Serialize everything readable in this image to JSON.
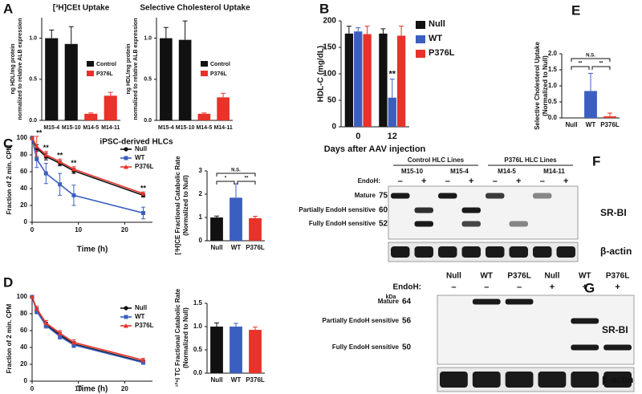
{
  "chart_data": [
    {
      "type": "bar",
      "panel": "A",
      "title": "[³H]CEt Uptake",
      "ylabel": [
        "ng HDL/mg protein",
        "normalized to relative ALB expression"
      ],
      "xlabel": "iPSC-derived HLCs",
      "categories": [
        "M15-4",
        "M15-10",
        "M14-5",
        "M14-11"
      ],
      "series": [
        {
          "name": "Control",
          "color": "#111111",
          "values": [
            1.0,
            0.93,
            null,
            null
          ],
          "errors": [
            0.1,
            0.21,
            null,
            null
          ]
        },
        {
          "name": "P376L",
          "color": "#e8322a",
          "values": [
            null,
            null,
            0.08,
            0.3
          ],
          "errors": [
            null,
            null,
            0.01,
            0.04
          ]
        }
      ],
      "ylim": [
        0,
        1.25
      ],
      "yticks": [
        {
          "value": 0,
          "label": "0.0"
        },
        {
          "value": 0.5,
          "label": "0.5"
        },
        {
          "value": 1,
          "label": "1.0"
        }
      ],
      "legend": "right"
    },
    {
      "type": "bar",
      "title": "Selective Cholesterol Uptake",
      "ylabel": [
        "ng HDL/mg protein",
        "normalized to relative ALB expression"
      ],
      "categories": [
        "M15-4",
        "M15-10",
        "M14-5",
        "M14-11"
      ],
      "series": [
        {
          "name": "Control",
          "color": "#111111",
          "values": [
            1.0,
            0.98,
            null,
            null
          ],
          "errors": [
            0.13,
            0.23,
            null,
            null
          ]
        },
        {
          "name": "P376L",
          "color": "#e8322a",
          "values": [
            null,
            null,
            0.08,
            0.28
          ],
          "errors": [
            null,
            null,
            0.01,
            0.05
          ]
        }
      ],
      "ylim": [
        0,
        1.25
      ],
      "yticks": [
        {
          "value": 0,
          "label": "0.0"
        },
        {
          "value": 0.5,
          "label": "0.5"
        },
        {
          "value": 1,
          "label": "1.0"
        }
      ],
      "legend": "right"
    },
    {
      "type": "bar",
      "panel": "B",
      "ylabel": [
        "HDL-C (mg/dL)"
      ],
      "xlabel": "Days after AAV injection",
      "categories": [
        "0",
        "12"
      ],
      "series": [
        {
          "name": "Null",
          "color": "#111111",
          "values": [
            176,
            176
          ],
          "errors": [
            14,
            9
          ]
        },
        {
          "name": "WT",
          "color": "#3b5fc0",
          "values": [
            180,
            55
          ],
          "errors": [
            7,
            35
          ]
        },
        {
          "name": "P376L",
          "color": "#e8322a",
          "values": [
            175,
            172
          ],
          "errors": [
            15,
            18
          ]
        }
      ],
      "ylim": [
        0,
        200
      ],
      "yticks": [
        0,
        50,
        100,
        150,
        200
      ],
      "legend": "outside right",
      "annotations": [
        "**"
      ]
    },
    {
      "type": "bar",
      "panel": "E",
      "ylabel": [
        "Selective Cholesterol Uptake",
        "(Normalized to Null)"
      ],
      "categories": [
        "Null",
        "WT",
        "P376L"
      ],
      "values": [
        0,
        0.84,
        0.05
      ],
      "errors": [
        0,
        0.55,
        0.1
      ],
      "colors": [
        "#111111",
        "#3b5fc0",
        "#e8322a"
      ],
      "ylim": [
        0,
        2
      ],
      "yticks": [
        {
          "value": 0,
          "label": "0.0"
        },
        {
          "value": 0.5,
          "label": "0.5"
        },
        {
          "value": 1,
          "label": "1.0"
        },
        {
          "value": 1.5,
          "label": "1.5"
        },
        {
          "value": 2,
          "label": "2.0"
        }
      ],
      "annotations": [
        "N.S.",
        "**",
        "**"
      ]
    },
    {
      "type": "line",
      "panel": "C",
      "ylabel": [
        "Fraction of 2 min. CPM"
      ],
      "xlabel": "Time (h)",
      "x": [
        0,
        1,
        3,
        6,
        9,
        24
      ],
      "series": [
        {
          "name": "Null",
          "color": "#111111",
          "values": [
            100,
            88,
            78,
            70,
            61,
            32
          ],
          "errors": [
            2,
            4,
            4,
            3,
            3,
            2
          ]
        },
        {
          "name": "WT",
          "color": "#3b5fc0",
          "values": [
            100,
            75,
            58,
            45,
            32,
            11
          ],
          "errors": [
            2,
            10,
            12,
            13,
            12,
            7
          ]
        },
        {
          "name": "P376L",
          "color": "#e8322a",
          "values": [
            100,
            90,
            80,
            72,
            63,
            34
          ],
          "errors": [
            2,
            12,
            4,
            3,
            3,
            2
          ]
        }
      ],
      "xlim": [
        0,
        26
      ],
      "ylim": [
        0,
        100
      ],
      "xticks": [
        0,
        10,
        20
      ],
      "yticks": [
        0,
        20,
        40,
        60,
        80,
        100
      ],
      "legend": "upper right",
      "annotations": [
        "**",
        "**",
        "**",
        "**",
        "**"
      ]
    },
    {
      "type": "bar",
      "ylabel": [
        "[³H]CE Fractional Catabolic Rate",
        "(Normalized to Null)"
      ],
      "categories": [
        "Null",
        "WT",
        "P376L"
      ],
      "values": [
        1.0,
        1.85,
        0.97
      ],
      "errors": [
        0.06,
        0.6,
        0.08
      ],
      "colors": [
        "#111111",
        "#3b5fc0",
        "#e8322a"
      ],
      "ylim": [
        0,
        3
      ],
      "yticks": [
        0,
        1,
        2,
        3
      ],
      "annotations": [
        "N.S.",
        "*",
        "**"
      ]
    },
    {
      "type": "line",
      "panel": "D",
      "ylabel": [
        "Fraction of 2 min. CPM"
      ],
      "xlabel": "Time (h)",
      "x": [
        0,
        1,
        3,
        6,
        9,
        24
      ],
      "series": [
        {
          "name": "Null",
          "color": "#111111",
          "values": [
            100,
            84,
            67,
            55,
            44,
            23
          ],
          "errors": [
            1,
            3,
            3,
            3,
            3,
            2
          ]
        },
        {
          "name": "WT",
          "color": "#3b5fc0",
          "values": [
            100,
            83,
            66,
            53,
            43,
            22
          ],
          "errors": [
            1,
            3,
            3,
            3,
            3,
            2
          ]
        },
        {
          "name": "P376L",
          "color": "#e8322a",
          "values": [
            100,
            86,
            69,
            57,
            46,
            25
          ],
          "errors": [
            1,
            3,
            3,
            3,
            3,
            2
          ]
        }
      ],
      "xlim": [
        0,
        26
      ],
      "ylim": [
        0,
        100
      ],
      "xticks": [
        0,
        10,
        20
      ],
      "yticks": [
        0,
        20,
        40,
        60,
        80,
        100
      ],
      "legend": "upper right"
    },
    {
      "type": "bar",
      "ylabel": [
        "¹²⁵I TC Fractional Catabolic Rate",
        "(Normalized to Null)"
      ],
      "categories": [
        "Null",
        "WT",
        "P376L"
      ],
      "values": [
        1.0,
        1.0,
        0.93
      ],
      "errors": [
        0.08,
        0.07,
        0.06
      ],
      "colors": [
        "#111111",
        "#3b5fc0",
        "#e8322a"
      ],
      "ylim": [
        0,
        1.5
      ],
      "yticks": [
        {
          "value": 0,
          "label": "0.0"
        },
        {
          "value": 0.5,
          "label": "0.5"
        },
        {
          "value": 1,
          "label": "1.0"
        },
        {
          "value": 1.5,
          "label": "1.5"
        }
      ]
    }
  ],
  "blots": [
    {
      "panel": "F",
      "groups": [
        "Control HLC Lines",
        "P376L HLC Lines"
      ],
      "lanes": [
        "M15-10",
        "M15-4",
        "M14-5",
        "M14-11"
      ],
      "endoh_label": "EndoH:",
      "endoh": [
        "–",
        "+",
        "–",
        "+",
        "–",
        "+",
        "–",
        "+"
      ],
      "bands": [
        "Mature",
        "Partially EndoH sensitive",
        "Fully EndoH sensitive"
      ],
      "kda": [
        75,
        60,
        52
      ],
      "proteins": [
        "SR-BI",
        "β-actin"
      ]
    },
    {
      "panel": "G",
      "lanes": [
        "Null",
        "WT",
        "P376L",
        "Null",
        "WT",
        "P376L"
      ],
      "endoh_label": "EndoH:",
      "endoh": [
        "–",
        "–",
        "–",
        "+",
        "+",
        "+"
      ],
      "kda_label": "kDa",
      "bands": [
        "Mature",
        "Partially EndoH sensitive",
        "Fully EndoH sensitive"
      ],
      "kda": [
        64,
        56,
        50
      ],
      "proteins": [
        "SR-BI",
        "β-actin"
      ]
    }
  ]
}
